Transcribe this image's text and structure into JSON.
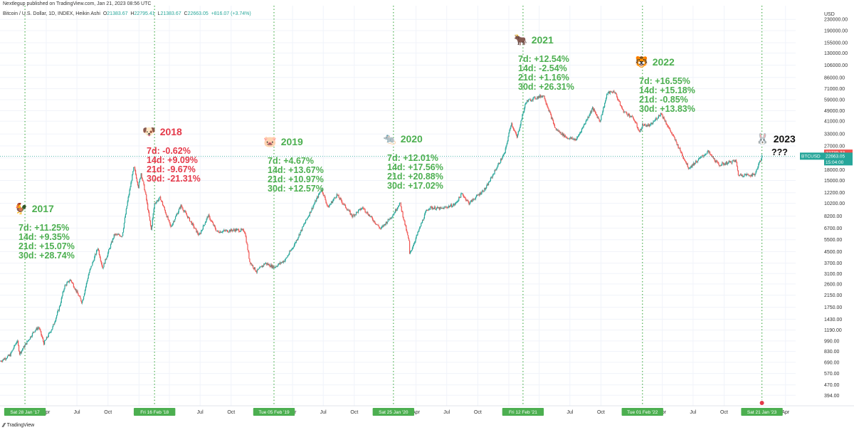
{
  "header": {
    "published": "Nextlegup published on TradingView.com, Jan 21, 2023 08:56 UTC",
    "symbol": "Bitcoin / U.S. Dollar, 1D, INDEX, Heikin Ashi",
    "o_label": "O",
    "o": "21383.67",
    "h_label": "H",
    "h": "22795.41",
    "l_label": "L",
    "l": "21383.67",
    "c_label": "C",
    "c": "22663.05",
    "change": "+816.07 (+3.74%)"
  },
  "footer": {
    "brand": "TradingView",
    "logo_icon": "tradingview-logo-icon"
  },
  "colors": {
    "up": "#26a69a",
    "down": "#ef5350",
    "green_text": "#4caf50",
    "red_text": "#e53949",
    "vline": "#4caf50",
    "grid": "#f0f3fa"
  },
  "price_tags": {
    "symbol": "BTCUSD",
    "high": "22739.33",
    "last": "22663.05",
    "countdown": "15:04:00"
  },
  "annotations": [
    {
      "year": "2017",
      "emoji": "🐓",
      "color": "green",
      "stats": [
        "7d: +11.25%",
        "14d: +9.35%",
        "21d: +15.07%",
        "30d: +28.74%"
      ]
    },
    {
      "year": "2018",
      "emoji": "🐶",
      "color": "red",
      "stats": [
        "7d: -0.62%",
        "14d: +9.09%",
        "21d: -9.67%",
        "30d: -21.31%"
      ]
    },
    {
      "year": "2019",
      "emoji": "🐷",
      "color": "green",
      "stats": [
        "7d: +4.67%",
        "14d: +13.67%",
        "21d: +10.97%",
        "30d: +12.57%"
      ]
    },
    {
      "year": "2020",
      "emoji": "🐀",
      "color": "green",
      "stats": [
        "7d: +12.01%",
        "14d: +17.56%",
        "21d: +20.88%",
        "30d: +17.02%"
      ]
    },
    {
      "year": "2021",
      "emoji": "🐂",
      "color": "green",
      "stats": [
        "7d: +12.54%",
        "14d: -2.54%",
        "21d: +1.16%",
        "30d: +26.31%"
      ]
    },
    {
      "year": "2022",
      "emoji": "🐯",
      "color": "green",
      "stats": [
        "7d: +16.55%",
        "14d: +15.18%",
        "21d: -0.85%",
        "30d: +13.83%"
      ]
    },
    {
      "year": "2023",
      "emoji": "🐰",
      "color": "black",
      "stats": [
        "???"
      ]
    }
  ],
  "chart_data": {
    "type": "line",
    "yscale": "log",
    "ylabel": "USD",
    "ylim": [
      330,
      290000
    ],
    "y_ticks": [
      "230000.00",
      "190000.00",
      "155000.00",
      "130000.00",
      "106000.00",
      "86000.00",
      "71000.00",
      "59000.00",
      "49000.00",
      "41000.00",
      "33000.00",
      "27000.00",
      "22000.00",
      "18000.00",
      "15000.00",
      "12200.00",
      "10200.00",
      "8200.00",
      "6700.00",
      "5500.00",
      "4500.00",
      "3700.00",
      "3100.00",
      "2600.00",
      "2150.00",
      "1750.00",
      "1430.00",
      "1190.00",
      "990.00",
      "830.00",
      "690.00",
      "570.00",
      "470.00",
      "394.00"
    ],
    "x_range": [
      "2016-11-15",
      "2023-05-01"
    ],
    "x_ticks": [
      {
        "label": "Apr",
        "date": "2017-04-01"
      },
      {
        "label": "Jul",
        "date": "2017-07-01"
      },
      {
        "label": "Oct",
        "date": "2017-10-01"
      },
      {
        "label": "2018",
        "date": "2018-01-01"
      },
      {
        "label": "Apr",
        "date": "2018-04-01"
      },
      {
        "label": "Jul",
        "date": "2018-07-01"
      },
      {
        "label": "Oct",
        "date": "2018-10-01"
      },
      {
        "label": "Apr",
        "date": "2019-04-01"
      },
      {
        "label": "Jul",
        "date": "2019-07-01"
      },
      {
        "label": "Oct",
        "date": "2019-10-01"
      },
      {
        "label": "Apr",
        "date": "2020-04-01"
      },
      {
        "label": "Jul",
        "date": "2020-07-01"
      },
      {
        "label": "Oct",
        "date": "2020-10-01"
      },
      {
        "label": "2021",
        "date": "2021-01-01"
      },
      {
        "label": "Apr",
        "date": "2021-04-01"
      },
      {
        "label": "Jul",
        "date": "2021-07-01"
      },
      {
        "label": "Oct",
        "date": "2021-10-01"
      },
      {
        "label": "Apr",
        "date": "2022-04-01"
      },
      {
        "label": "Jul",
        "date": "2022-07-01"
      },
      {
        "label": "Oct",
        "date": "2022-10-01"
      },
      {
        "label": "Apr",
        "date": "2023-04-01"
      }
    ],
    "markers": [
      {
        "label": "Sat 28 Jan '17",
        "date": "2017-01-28"
      },
      {
        "label": "Fri 16 Feb '18",
        "date": "2018-02-16"
      },
      {
        "label": "Tue 05 Feb '19",
        "date": "2019-02-05"
      },
      {
        "label": "Sat 25 Jan '20",
        "date": "2020-01-25"
      },
      {
        "label": "Fri 12 Feb '21",
        "date": "2021-02-12"
      },
      {
        "label": "Tue 01 Feb '22",
        "date": "2022-02-01"
      },
      {
        "label": "Sat 21 Jan '23",
        "date": "2023-01-21"
      }
    ],
    "series": [
      {
        "points": [
          [
            "2016-11-15",
            700
          ],
          [
            "2016-12-15",
            780
          ],
          [
            "2017-01-05",
            1000
          ],
          [
            "2017-01-12",
            800
          ],
          [
            "2017-01-28",
            920
          ],
          [
            "2017-02-25",
            1180
          ],
          [
            "2017-03-10",
            1250
          ],
          [
            "2017-03-25",
            950
          ],
          [
            "2017-04-20",
            1250
          ],
          [
            "2017-05-10",
            1750
          ],
          [
            "2017-05-25",
            2500
          ],
          [
            "2017-06-12",
            2800
          ],
          [
            "2017-07-16",
            1900
          ],
          [
            "2017-08-05",
            3100
          ],
          [
            "2017-09-01",
            4800
          ],
          [
            "2017-09-15",
            3400
          ],
          [
            "2017-10-20",
            6000
          ],
          [
            "2017-11-12",
            5900
          ],
          [
            "2017-11-28",
            10500
          ],
          [
            "2017-12-17",
            19000
          ],
          [
            "2017-12-30",
            13500
          ],
          [
            "2018-01-07",
            17000
          ],
          [
            "2018-01-20",
            12000
          ],
          [
            "2018-02-06",
            6500
          ],
          [
            "2018-02-16",
            10200
          ],
          [
            "2018-03-05",
            11200
          ],
          [
            "2018-04-05",
            6800
          ],
          [
            "2018-05-05",
            9800
          ],
          [
            "2018-06-28",
            5900
          ],
          [
            "2018-07-25",
            8300
          ],
          [
            "2018-08-20",
            6300
          ],
          [
            "2018-10-15",
            6500
          ],
          [
            "2018-11-10",
            6400
          ],
          [
            "2018-11-25",
            3800
          ],
          [
            "2018-12-15",
            3200
          ],
          [
            "2019-01-10",
            3700
          ],
          [
            "2019-02-05",
            3450
          ],
          [
            "2019-03-10",
            3900
          ],
          [
            "2019-04-05",
            5000
          ],
          [
            "2019-05-15",
            8000
          ],
          [
            "2019-06-26",
            13000
          ],
          [
            "2019-07-15",
            9500
          ],
          [
            "2019-08-10",
            11800
          ],
          [
            "2019-09-25",
            8200
          ],
          [
            "2019-10-26",
            9500
          ],
          [
            "2019-12-18",
            6600
          ],
          [
            "2020-01-25",
            8500
          ],
          [
            "2020-02-13",
            10300
          ],
          [
            "2020-03-12",
            5200
          ],
          [
            "2020-03-13",
            4300
          ],
          [
            "2020-04-30",
            8800
          ],
          [
            "2020-05-10",
            9500
          ],
          [
            "2020-06-15",
            9300
          ],
          [
            "2020-07-25",
            10000
          ],
          [
            "2020-08-15",
            12000
          ],
          [
            "2020-09-05",
            10200
          ],
          [
            "2020-10-25",
            13200
          ],
          [
            "2020-11-25",
            18500
          ],
          [
            "2020-12-20",
            24000
          ],
          [
            "2021-01-08",
            40000
          ],
          [
            "2021-01-25",
            31000
          ],
          [
            "2021-02-12",
            47000
          ],
          [
            "2021-02-21",
            57000
          ],
          [
            "2021-03-13",
            60000
          ],
          [
            "2021-04-14",
            63500
          ],
          [
            "2021-05-19",
            36000
          ],
          [
            "2021-06-22",
            31000
          ],
          [
            "2021-07-20",
            30000
          ],
          [
            "2021-09-06",
            51000
          ],
          [
            "2021-09-28",
            41000
          ],
          [
            "2021-10-20",
            66000
          ],
          [
            "2021-11-10",
            68000
          ],
          [
            "2021-12-05",
            49000
          ],
          [
            "2022-01-05",
            43000
          ],
          [
            "2022-01-24",
            34000
          ],
          [
            "2022-02-01",
            38500
          ],
          [
            "2022-02-24",
            38000
          ],
          [
            "2022-03-28",
            47000
          ],
          [
            "2022-05-11",
            29000
          ],
          [
            "2022-06-18",
            18500
          ],
          [
            "2022-08-14",
            24500
          ],
          [
            "2022-09-15",
            19500
          ],
          [
            "2022-11-05",
            21000
          ],
          [
            "2022-11-12",
            16500
          ],
          [
            "2022-12-30",
            16500
          ],
          [
            "2023-01-21",
            22663
          ]
        ]
      }
    ]
  }
}
